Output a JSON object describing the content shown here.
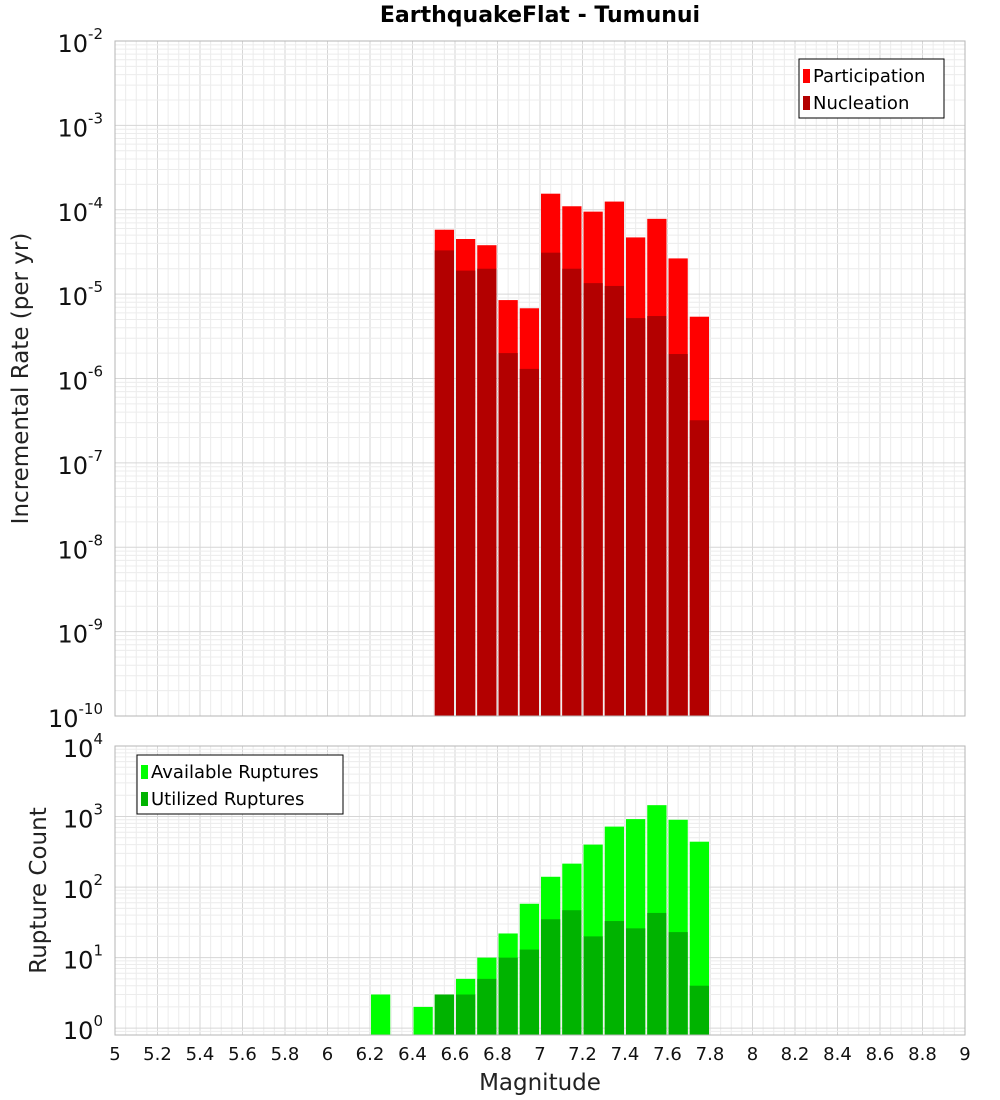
{
  "chart_data": {
    "title": "EarthquakeFlat - Tumunui",
    "xlabel": "Magnitude",
    "xlim": [
      5,
      9
    ],
    "x_ticks": [
      "5",
      "5.2",
      "5.4",
      "5.6",
      "5.8",
      "6",
      "6.2",
      "6.4",
      "6.6",
      "6.8",
      "7",
      "7.2",
      "7.4",
      "7.6",
      "7.8",
      "8",
      "8.2",
      "8.4",
      "8.6",
      "8.8",
      "9"
    ],
    "bin_width": 0.1,
    "panels": [
      {
        "type": "bar",
        "ylabel": "Incremental Rate (per yr)",
        "yscale": "log",
        "ylim": [
          1e-10,
          0.01
        ],
        "y_tick_base": "10",
        "y_tick_exponents": [
          "-10",
          "-9",
          "-8",
          "-7",
          "-6",
          "-5",
          "-4",
          "-3",
          "-2"
        ],
        "legend_position": "top-right",
        "x": [
          6.55,
          6.65,
          6.75,
          6.85,
          6.95,
          7.05,
          7.15,
          7.25,
          7.35,
          7.45,
          7.55,
          7.65,
          7.75
        ],
        "series": [
          {
            "name": "Participation",
            "color": "#ff0000",
            "values": [
              5.8e-05,
              4.5e-05,
              3.8e-05,
              8.5e-06,
              6.8e-06,
              0.000155,
              0.00011,
              9.5e-05,
              0.000125,
              4.7e-05,
              7.8e-05,
              2.65e-05,
              5.4e-06
            ]
          },
          {
            "name": "Nucleation",
            "color": "#b30000",
            "values": [
              3.3e-05,
              1.9e-05,
              2e-05,
              2e-06,
              1.3e-06,
              3.1e-05,
              2e-05,
              1.35e-05,
              1.25e-05,
              5.2e-06,
              5.5e-06,
              1.95e-06,
              3.2e-07
            ]
          }
        ]
      },
      {
        "type": "bar",
        "ylabel": "Rupture Count",
        "yscale": "log",
        "ylim": [
          0.8,
          10000
        ],
        "y_tick_base": "10",
        "y_tick_exponents": [
          "0",
          "1",
          "2",
          "3",
          "4"
        ],
        "legend_position": "top-left",
        "x": [
          6.25,
          6.35,
          6.45,
          6.55,
          6.65,
          6.75,
          6.85,
          6.95,
          7.05,
          7.15,
          7.25,
          7.35,
          7.45,
          7.55,
          7.65,
          7.75
        ],
        "series": [
          {
            "name": "Available Ruptures",
            "color": "#00ff00",
            "values": [
              3,
              null,
              2,
              3,
              5,
              10,
              22,
              58,
              140,
              215,
              400,
              720,
              920,
              1450,
              900,
              440
            ]
          },
          {
            "name": "Utilized Ruptures",
            "color": "#00b300",
            "values": [
              null,
              null,
              null,
              3,
              3,
              5,
              10,
              13,
              35,
              47,
              20,
              33,
              26,
              43,
              23,
              4
            ]
          }
        ]
      }
    ]
  }
}
